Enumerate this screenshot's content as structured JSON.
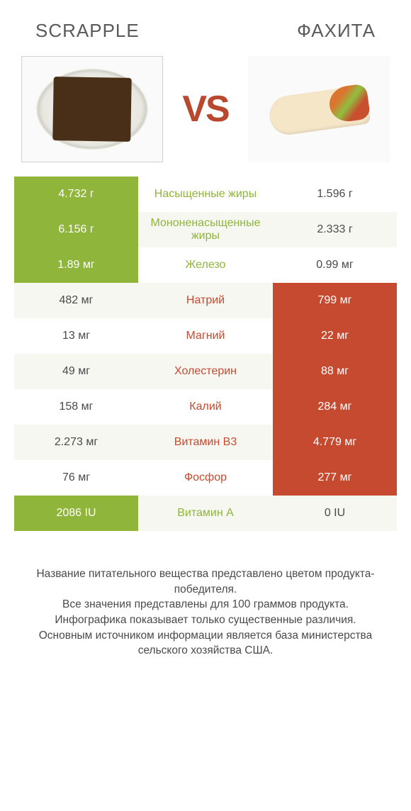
{
  "colors": {
    "scrapple_win": "#8fb53b",
    "fajita_win": "#c64a2f",
    "label_scrapple": "#8fb53b",
    "label_fajita": "#c64a2f",
    "row_alt_bg": "#f7f7f2",
    "text": "#4a4a4a",
    "vs": "#b8492f"
  },
  "header": {
    "left": "SCRAPPLE",
    "right": "ФАХИТА",
    "vs": "VS"
  },
  "rows": [
    {
      "label": "Насыщенные жиры",
      "left": "4.732 г",
      "right": "1.596 г",
      "winner": "left"
    },
    {
      "label": "Мононенасыщенные жиры",
      "left": "6.156 г",
      "right": "2.333 г",
      "winner": "left"
    },
    {
      "label": "Железо",
      "left": "1.89 мг",
      "right": "0.99 мг",
      "winner": "left"
    },
    {
      "label": "Натрий",
      "left": "482 мг",
      "right": "799 мг",
      "winner": "right"
    },
    {
      "label": "Магний",
      "left": "13 мг",
      "right": "22 мг",
      "winner": "right"
    },
    {
      "label": "Холестерин",
      "left": "49 мг",
      "right": "88 мг",
      "winner": "right"
    },
    {
      "label": "Калий",
      "left": "158 мг",
      "right": "284 мг",
      "winner": "right"
    },
    {
      "label": "Витамин B3",
      "left": "2.273 мг",
      "right": "4.779 мг",
      "winner": "right"
    },
    {
      "label": "Фосфор",
      "left": "76 мг",
      "right": "277 мг",
      "winner": "right"
    },
    {
      "label": "Витамин A",
      "left": "2086 IU",
      "right": "0 IU",
      "winner": "left"
    }
  ],
  "footer": {
    "line1": "Название питательного вещества представлено цветом продукта-победителя.",
    "line2": "Все значения представлены для 100 граммов продукта.",
    "line3": "Инфографика показывает только существенные различия.",
    "line4": "Основным источником информации является база министерства сельского хозяйства США."
  }
}
